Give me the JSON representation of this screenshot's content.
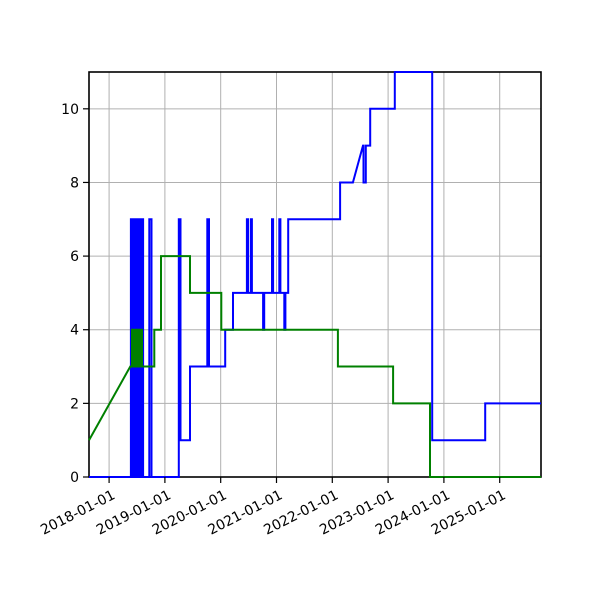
{
  "figure": {
    "background_color": "#ffffff",
    "title": ""
  },
  "chart_data": {
    "type": "line",
    "title": "",
    "xlabel": "",
    "ylabel": "",
    "grid": true,
    "legend": null,
    "x_axis": {
      "tick_labels": [
        "2018-01-01",
        "2019-01-01",
        "2020-01-01",
        "2021-01-01",
        "2022-01-01",
        "2023-01-01",
        "2024-01-01",
        "2025-01-01"
      ],
      "tick_years": [
        2018,
        2019,
        2020,
        2021,
        2022,
        2023,
        2024,
        2025
      ],
      "label_rotation_deg": 27,
      "range_years": [
        2017.64,
        2025.74
      ]
    },
    "y_axis": {
      "tick_labels": [
        "0",
        "2",
        "4",
        "6",
        "8",
        "10"
      ],
      "ticks": [
        0,
        2,
        4,
        6,
        8,
        10
      ],
      "range": [
        0,
        11
      ]
    },
    "series": [
      {
        "name": "blue-series",
        "color": "#0000ff",
        "points": [
          [
            2017.64,
            0
          ],
          [
            2018.39,
            0
          ],
          [
            2018.39,
            7
          ],
          [
            2018.41,
            7
          ],
          [
            2018.41,
            0
          ],
          [
            2018.43,
            0
          ],
          [
            2018.43,
            7
          ],
          [
            2018.45,
            7
          ],
          [
            2018.45,
            0
          ],
          [
            2018.47,
            0
          ],
          [
            2018.47,
            7
          ],
          [
            2018.49,
            7
          ],
          [
            2018.49,
            0
          ],
          [
            2018.51,
            0
          ],
          [
            2018.51,
            7
          ],
          [
            2018.53,
            7
          ],
          [
            2018.53,
            0
          ],
          [
            2018.55,
            0
          ],
          [
            2018.55,
            7
          ],
          [
            2018.57,
            7
          ],
          [
            2018.57,
            0
          ],
          [
            2018.59,
            0
          ],
          [
            2018.59,
            7
          ],
          [
            2018.61,
            7
          ],
          [
            2018.61,
            0
          ],
          [
            2018.72,
            0
          ],
          [
            2018.72,
            7
          ],
          [
            2018.76,
            7
          ],
          [
            2018.76,
            0
          ],
          [
            2019.25,
            0
          ],
          [
            2019.25,
            7
          ],
          [
            2019.28,
            7
          ],
          [
            2019.28,
            1
          ],
          [
            2019.45,
            1
          ],
          [
            2019.45,
            3
          ],
          [
            2019.76,
            3
          ],
          [
            2019.76,
            7
          ],
          [
            2019.79,
            7
          ],
          [
            2019.79,
            3
          ],
          [
            2020.08,
            3
          ],
          [
            2020.08,
            4
          ],
          [
            2020.22,
            4
          ],
          [
            2020.22,
            5
          ],
          [
            2020.47,
            5
          ],
          [
            2020.47,
            7
          ],
          [
            2020.49,
            7
          ],
          [
            2020.49,
            5
          ],
          [
            2020.54,
            5
          ],
          [
            2020.54,
            7
          ],
          [
            2020.56,
            7
          ],
          [
            2020.56,
            5
          ],
          [
            2020.76,
            5
          ],
          [
            2020.76,
            4
          ],
          [
            2020.78,
            4
          ],
          [
            2020.78,
            5
          ],
          [
            2020.92,
            5
          ],
          [
            2020.92,
            7
          ],
          [
            2020.94,
            7
          ],
          [
            2020.94,
            5
          ],
          [
            2021.05,
            5
          ],
          [
            2021.05,
            7
          ],
          [
            2021.07,
            7
          ],
          [
            2021.07,
            5
          ],
          [
            2021.14,
            5
          ],
          [
            2021.14,
            4
          ],
          [
            2021.16,
            4
          ],
          [
            2021.16,
            5
          ],
          [
            2021.21,
            5
          ],
          [
            2021.21,
            7
          ],
          [
            2022.14,
            7
          ],
          [
            2022.14,
            8
          ],
          [
            2022.37,
            8
          ],
          [
            2022.55,
            9
          ],
          [
            2022.56,
            9
          ],
          [
            2022.56,
            8
          ],
          [
            2022.6,
            8
          ],
          [
            2022.6,
            9
          ],
          [
            2022.68,
            9
          ],
          [
            2022.68,
            10
          ],
          [
            2023.12,
            10
          ],
          [
            2023.12,
            11
          ],
          [
            2023.79,
            11
          ],
          [
            2023.79,
            1
          ],
          [
            2024.74,
            1
          ],
          [
            2024.74,
            2
          ],
          [
            2025.74,
            2
          ]
        ]
      },
      {
        "name": "green-series",
        "color": "#008000",
        "points": [
          [
            2017.64,
            1.0
          ],
          [
            2018.38,
            3
          ],
          [
            2018.41,
            3
          ],
          [
            2018.41,
            4
          ],
          [
            2018.43,
            4
          ],
          [
            2018.43,
            3
          ],
          [
            2018.45,
            3
          ],
          [
            2018.45,
            4
          ],
          [
            2018.47,
            4
          ],
          [
            2018.47,
            3
          ],
          [
            2018.49,
            3
          ],
          [
            2018.49,
            4
          ],
          [
            2018.51,
            4
          ],
          [
            2018.51,
            3
          ],
          [
            2018.53,
            3
          ],
          [
            2018.53,
            4
          ],
          [
            2018.55,
            4
          ],
          [
            2018.55,
            3
          ],
          [
            2018.57,
            3
          ],
          [
            2018.57,
            4
          ],
          [
            2018.59,
            4
          ],
          [
            2018.59,
            3
          ],
          [
            2018.81,
            3
          ],
          [
            2018.81,
            4
          ],
          [
            2018.93,
            4
          ],
          [
            2018.93,
            6
          ],
          [
            2019.45,
            6
          ],
          [
            2019.45,
            5
          ],
          [
            2020.01,
            5
          ],
          [
            2020.01,
            4
          ],
          [
            2022.1,
            4
          ],
          [
            2022.1,
            3
          ],
          [
            2023.09,
            3
          ],
          [
            2023.09,
            2
          ],
          [
            2023.75,
            2
          ],
          [
            2023.75,
            0
          ],
          [
            2025.74,
            0
          ]
        ]
      }
    ]
  }
}
